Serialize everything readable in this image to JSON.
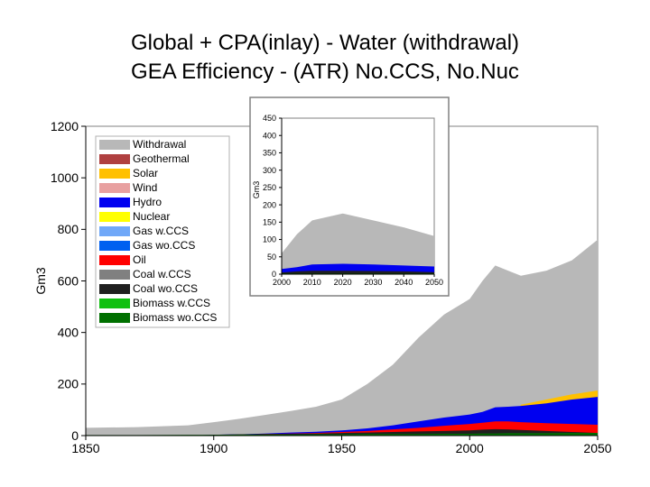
{
  "colors": {
    "Withdrawal": "#b8b8b8",
    "Geothermal": "#b04040",
    "Solar": "#ffc000",
    "Wind": "#e8a0a0",
    "Hydro": "#0000f0",
    "Nuclear": "#ffff00",
    "Gas w.CCS": "#70a8f8",
    "Gas wo.CCS": "#0060f0",
    "Oil": "#ff0000",
    "Coal w.CCS": "#808080",
    "Coal wo.CCS": "#202020",
    "Biomass w.CCS": "#10c010",
    "Biomass wo.CCS": "#007000"
  },
  "chart_data": [
    {
      "type": "area",
      "title": "Global + CPA(inlay) - Water (withdrawal)",
      "subtitle": "GEA Efficiency - (ATR) No.CCS, No.Nuc",
      "ylabel": "Gm3",
      "xlim": [
        1850,
        2050
      ],
      "ylim": [
        0,
        1200
      ],
      "xticks": [
        1850,
        1900,
        1950,
        2000,
        2050
      ],
      "yticks": [
        0,
        200,
        400,
        600,
        800,
        1000,
        1200
      ],
      "legend_position": "top-left",
      "stacked": false,
      "legend": [
        "Withdrawal",
        "Geothermal",
        "Solar",
        "Wind",
        "Hydro",
        "Nuclear",
        "Gas w.CCS",
        "Gas wo.CCS",
        "Oil",
        "Coal w.CCS",
        "Coal wo.CCS",
        "Biomass w.CCS",
        "Biomass wo.CCS"
      ],
      "x": [
        1850,
        1870,
        1890,
        1900,
        1910,
        1920,
        1930,
        1940,
        1950,
        1960,
        1970,
        1980,
        1990,
        2000,
        2005,
        2010,
        2015,
        2020,
        2030,
        2040,
        2050
      ],
      "series": [
        {
          "name": "Withdrawal",
          "values": [
            30,
            33,
            40,
            52,
            65,
            80,
            95,
            112,
            140,
            200,
            275,
            380,
            470,
            530,
            600,
            660,
            640,
            620,
            640,
            680,
            760
          ]
        },
        {
          "name": "Solar",
          "values": [
            0,
            0,
            0,
            0,
            0,
            0,
            0,
            0,
            0,
            0,
            0,
            0,
            0,
            0,
            0,
            0,
            0,
            120,
            140,
            160,
            175
          ]
        },
        {
          "name": "Hydro",
          "values": [
            0,
            0,
            0,
            3,
            5,
            8,
            12,
            15,
            20,
            28,
            40,
            55,
            70,
            82,
            92,
            110,
            112,
            115,
            125,
            140,
            150
          ]
        },
        {
          "name": "Oil",
          "values": [
            0,
            0,
            0,
            2,
            4,
            6,
            8,
            10,
            14,
            18,
            24,
            30,
            38,
            45,
            50,
            55,
            55,
            52,
            48,
            45,
            42
          ]
        },
        {
          "name": "Coal wo.CCS",
          "values": [
            0,
            0,
            0,
            3,
            5,
            6,
            7,
            8,
            10,
            12,
            14,
            16,
            18,
            20,
            23,
            25,
            24,
            22,
            18,
            14,
            10
          ]
        },
        {
          "name": "Biomass wo.CCS",
          "values": [
            2,
            2,
            3,
            3,
            4,
            4,
            4,
            5,
            5,
            6,
            6,
            6,
            7,
            7,
            8,
            8,
            9,
            9,
            9,
            10,
            10
          ]
        }
      ]
    },
    {
      "type": "area",
      "title": "",
      "ylabel": "Gm3",
      "xlim": [
        2000,
        2050
      ],
      "ylim": [
        0,
        450
      ],
      "xticks": [
        2000,
        2010,
        2020,
        2030,
        2040,
        2050
      ],
      "yticks": [
        0,
        50,
        100,
        150,
        200,
        250,
        300,
        350,
        400,
        450
      ],
      "stacked": false,
      "x": [
        2000,
        2005,
        2010,
        2020,
        2030,
        2040,
        2050
      ],
      "series": [
        {
          "name": "Withdrawal",
          "values": [
            60,
            115,
            155,
            175,
            155,
            135,
            110
          ]
        },
        {
          "name": "Hydro",
          "values": [
            15,
            20,
            28,
            30,
            28,
            25,
            22
          ]
        },
        {
          "name": "Coal wo.CCS",
          "values": [
            5,
            8,
            10,
            10,
            9,
            8,
            6
          ]
        },
        {
          "name": "Biomass wo.CCS",
          "values": [
            2,
            2,
            2,
            2,
            2,
            2,
            2
          ]
        }
      ]
    }
  ]
}
